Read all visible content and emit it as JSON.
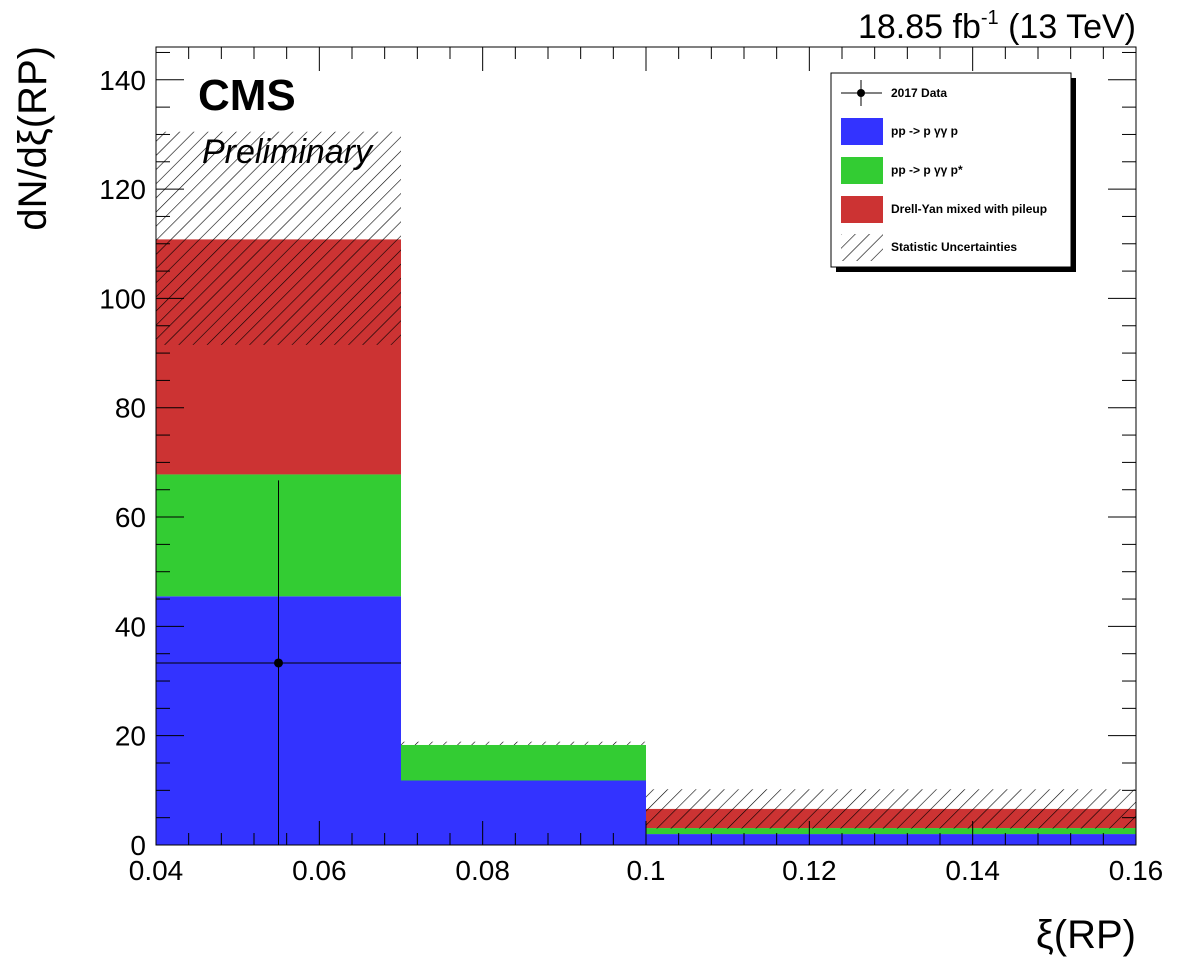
{
  "header": {
    "lumi_value": "18.85 fb",
    "lumi_exp": "-1",
    "lumi_energy": "(13 TeV)",
    "cms_label": "CMS",
    "preliminary_label": "Preliminary"
  },
  "colors": {
    "signal_exclusive": "#3333ff",
    "signal_dissociative": "#33cc33",
    "drell_yan": "#cc3333",
    "data": "#000000"
  },
  "chart_data": {
    "type": "bar",
    "stacked": true,
    "xlabel": "ξ(RP)",
    "ylabel": "dN/dξ(RP)",
    "xlim": [
      0.04,
      0.16
    ],
    "ylim": [
      0,
      146
    ],
    "xticks": [
      "0.04",
      "0.06",
      "0.08",
      "0.1",
      "0.12",
      "0.14",
      "0.16"
    ],
    "yticks": [
      "0",
      "20",
      "40",
      "60",
      "80",
      "100",
      "120",
      "140"
    ],
    "bin_edges": [
      0.04,
      0.07,
      0.1,
      0.16
    ],
    "series": [
      {
        "name": "pp -> p  γγ p",
        "color": "#3333ff",
        "values": [
          45.5,
          11.8,
          2.0
        ]
      },
      {
        "name": "pp -> p  γγ p*",
        "color": "#33cc33",
        "values": [
          22.3,
          6.5,
          1.1
        ]
      },
      {
        "name": "Drell-Yan mixed with pileup",
        "color": "#cc3333",
        "values": [
          43.0,
          0.0,
          3.5
        ]
      }
    ],
    "uncertainty": {
      "name": "Statistic Uncertainties",
      "low": [
        91.5,
        18.3,
        3.0
      ],
      "high": [
        130.5,
        18.9,
        10.2
      ]
    },
    "data_points": {
      "name": "2017 Data",
      "x": [
        0.055
      ],
      "y": [
        33.3
      ],
      "x_low": [
        0.04
      ],
      "x_high": [
        0.07
      ],
      "y_low": [
        0
      ],
      "y_high": [
        66.7
      ]
    },
    "legend_placement": "top-right",
    "grid": false
  }
}
